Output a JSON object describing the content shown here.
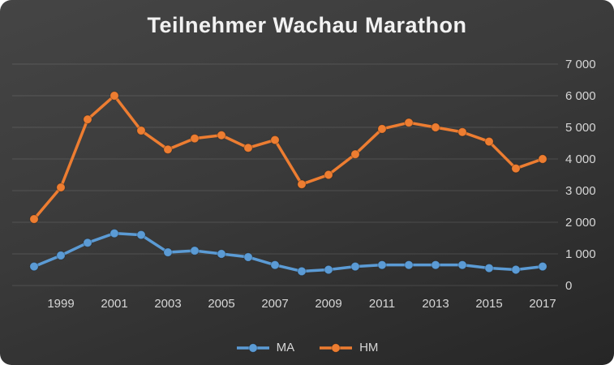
{
  "title": "Teilnehmer Wachau Marathon",
  "chart_data": {
    "type": "line",
    "title": "Teilnehmer Wachau Marathon",
    "x": [
      1998,
      1999,
      2000,
      2001,
      2002,
      2003,
      2004,
      2005,
      2006,
      2007,
      2008,
      2009,
      2010,
      2011,
      2012,
      2013,
      2014,
      2015,
      2016,
      2017
    ],
    "series": [
      {
        "name": "MA",
        "color": "#5B9BD5",
        "values": [
          600,
          950,
          1350,
          1650,
          1600,
          1050,
          1100,
          1000,
          900,
          650,
          450,
          500,
          600,
          650,
          650,
          650,
          650,
          550,
          500,
          600
        ]
      },
      {
        "name": "HM",
        "color": "#ED7D31",
        "values": [
          2100,
          3100,
          5250,
          6000,
          4900,
          4300,
          4650,
          4750,
          4350,
          4600,
          3200,
          3500,
          4150,
          4950,
          5150,
          5000,
          4850,
          4550,
          3700,
          4000
        ]
      }
    ],
    "ylim": [
      0,
      7000
    ],
    "ytick_interval": 1000,
    "ytick_labels": [
      "0",
      "1 000",
      "2 000",
      "3 000",
      "4 000",
      "5 000",
      "6 000",
      "7 000"
    ],
    "xtick_labels": [
      "1999",
      "2001",
      "2003",
      "2005",
      "2007",
      "2009",
      "2011",
      "2013",
      "2015",
      "2017"
    ],
    "grid": true,
    "legend_position": "bottom",
    "background": "dark-gradient",
    "colors": {
      "ma": "#5B9BD5",
      "hm": "#ED7D31",
      "text": "#d6d6d6",
      "title": "#f2f2f2"
    }
  }
}
